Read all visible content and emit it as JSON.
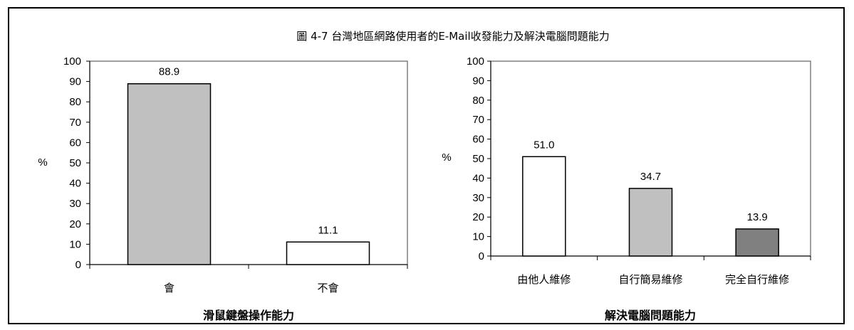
{
  "title": "圖 4-7 台灣地區網路使用者的E-Mail收發能力及解決電腦問題能力",
  "chart_data": [
    {
      "type": "bar",
      "categories": [
        "會",
        "不會"
      ],
      "values": [
        88.9,
        11.1
      ],
      "value_labels": [
        "88.9",
        "11.1"
      ],
      "bar_colors": [
        "#c0c0c0",
        "#ffffff"
      ],
      "xlabel": "滑鼠鍵盤操作能力",
      "ylabel": "%",
      "ylim": [
        0,
        100
      ],
      "yticks": [
        0,
        10,
        20,
        30,
        40,
        50,
        60,
        70,
        80,
        90,
        100
      ],
      "grid": false
    },
    {
      "type": "bar",
      "categories": [
        "由他人維修",
        "自行簡易維修",
        "完全自行維修"
      ],
      "values": [
        51.0,
        34.7,
        13.9
      ],
      "value_labels": [
        "51.0",
        "34.7",
        "13.9"
      ],
      "bar_colors": [
        "#ffffff",
        "#c0c0c0",
        "#808080"
      ],
      "xlabel": "解決電腦問題能力",
      "ylabel": "%",
      "ylim": [
        0,
        100
      ],
      "yticks": [
        0,
        10,
        20,
        30,
        40,
        50,
        60,
        70,
        80,
        90,
        100
      ],
      "grid": false
    }
  ]
}
